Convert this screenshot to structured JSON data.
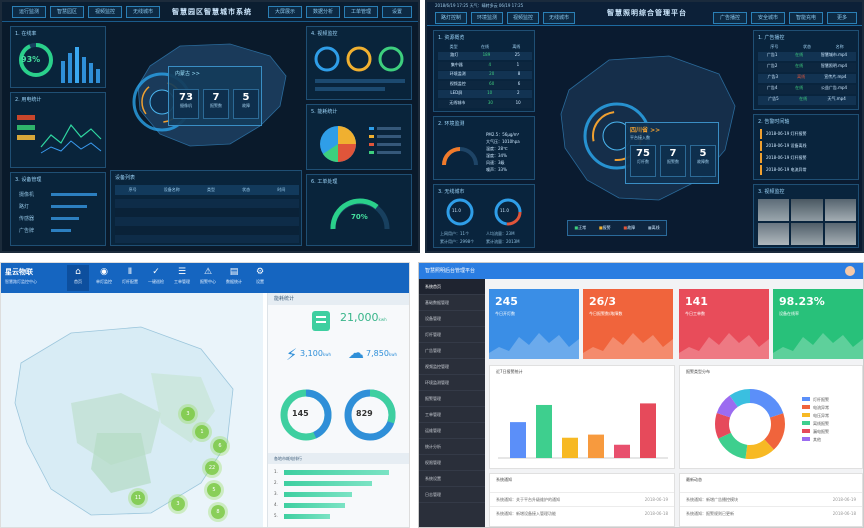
{
  "q1": {
    "title": "智慧园区智慧城市系统",
    "tabs": [
      "运行监测",
      "智慧园区",
      "视频监控",
      "无线城市",
      "大屏展示",
      "数据分析",
      "工单管理",
      "设置"
    ],
    "panel_a": {
      "title": "1. 在线率",
      "value": "93%"
    },
    "panel_b": {
      "title": "2. 用电统计"
    },
    "panel_c": {
      "title": "3. 设备管理",
      "rows": [
        "摄像机",
        "路灯",
        "传感器",
        "广告牌"
      ]
    },
    "map": {
      "region": "内蒙古 >>",
      "cards": [
        {
          "n": "73",
          "l": "摄像机"
        },
        {
          "n": "7",
          "l": "报警数"
        },
        {
          "n": "5",
          "l": "故障"
        }
      ]
    },
    "panel_d": {
      "title": "4. 视频监控"
    },
    "panel_e": {
      "title": "5. 能耗统计"
    },
    "panel_f": {
      "title": "6. 工单处理",
      "value": "70%"
    },
    "table": {
      "title": "设备列表",
      "header": [
        "序号",
        "设备名称",
        "类型",
        "状态",
        "时间"
      ]
    }
  },
  "q2": {
    "title": "智慧照明综合管理平台",
    "status": "2018/6/19  17:25   天气：晴转多云   06/19  17:25",
    "tabs": [
      "路灯控制",
      "环境监测",
      "视频监控",
      "无线城市",
      "广告播控",
      "安全城市",
      "智能充电",
      "更多"
    ],
    "resource": {
      "title": "1. 资源概览",
      "header": [
        "类型",
        "在线",
        "离线"
      ],
      "rows": [
        [
          "路灯",
          "189",
          "25"
        ],
        [
          "集中器",
          "4",
          "1"
        ],
        [
          "环境监测",
          "20",
          "8"
        ],
        [
          "视频监控",
          "60",
          "6"
        ],
        [
          "LED屏",
          "10",
          "2"
        ],
        [
          "无线城市",
          "30",
          "10"
        ]
      ]
    },
    "env": {
      "title": "2. 环境监测",
      "lines": [
        "PM2.5：56μg/m³",
        "大气压：1010hpa",
        "温度：28℃",
        "湿度：34%",
        "风速：3级",
        "噪声：33%"
      ]
    },
    "wifi": {
      "title": "3. 无线城市",
      "rings": [
        "11.0",
        "11.0"
      ],
      "lines": [
        "上网用户：11个",
        "累计用户：2998个",
        "人均流量：23M",
        "累计流量：2013M"
      ]
    },
    "map": {
      "province": "四川省 >>",
      "sub": "平台接入数",
      "cards": [
        {
          "n": "75",
          "l": "灯杆数"
        },
        {
          "n": "7",
          "l": "报警数"
        },
        {
          "n": "5",
          "l": "故障数"
        }
      ],
      "legend": [
        "正常",
        "报警",
        "故障",
        "离线"
      ]
    },
    "ad": {
      "title": "1. 广告播控",
      "header": [
        "序号",
        "状态",
        "名称"
      ],
      "rows": [
        [
          "广告1",
          "在线",
          "智慧城市.mp4"
        ],
        [
          "广告2",
          "在线",
          "智慧照明.mp4"
        ],
        [
          "广告3",
          "离线",
          "宣传片.mp4"
        ],
        [
          "广告4",
          "在线",
          "公益广告.mp4"
        ],
        [
          "广告5",
          "在线",
          "天气.mp4"
        ]
      ]
    },
    "alarm": {
      "title": "2. 告警时间轴",
      "rows": [
        "2018-06-19  灯杆报警",
        "2018-06-19  设备离线",
        "2018-06-19  灯杆报警",
        "2018-06-19  电流异常"
      ]
    },
    "video": {
      "title": "3. 视频监控"
    }
  },
  "q3": {
    "logo": "星云物联",
    "subtitle": "智慧路灯监控中心",
    "nav": [
      "首页",
      "单灯监控",
      "灯杆配置",
      "一键巡检",
      "工单管理",
      "报警中心",
      "数据统计",
      "设置"
    ],
    "panel_title": "能耗统计",
    "stats": [
      {
        "value": "21,000",
        "unit": "kwh"
      },
      {
        "value": "3,100",
        "unit": "kwh"
      },
      {
        "value": "7,850",
        "unit": "kwh"
      }
    ],
    "donuts": [
      "145",
      "829"
    ],
    "rank_title": "各地市耗电排行",
    "ranks": [
      {
        "l": "1.",
        "v": 0.95
      },
      {
        "l": "2.",
        "v": 0.8
      },
      {
        "l": "3.",
        "v": 0.62
      },
      {
        "l": "4.",
        "v": 0.55
      },
      {
        "l": "5.",
        "v": 0.42
      }
    ],
    "map_markers": [
      "3",
      "1",
      "22",
      "5",
      "8",
      "11",
      "3",
      "6"
    ]
  },
  "q4": {
    "title": "智慧照明后台管理平台",
    "sidebar": [
      "系统首页",
      "基础数据管理",
      "设备管理",
      "灯杆管理",
      "广告管理",
      "视频监控管理",
      "环境监测管理",
      "报警管理",
      "工单管理",
      "运维管理",
      "统计分析",
      "权限管理",
      "系统设置",
      "日志管理"
    ],
    "stats": [
      {
        "n": "245",
        "l": "今日开灯数",
        "c": "#3a8ee6"
      },
      {
        "n": "26/3",
        "l": "今日报警数/故障数",
        "c": "#f0643c"
      },
      {
        "n": "141",
        "l": "今日工单数",
        "c": "#e84c5a"
      },
      {
        "n": "98.23%",
        "l": "设备在线率",
        "c": "#28c17a"
      }
    ],
    "bar_title": "近7日报警统计",
    "donut_title": "报警类型分布",
    "bars": [
      {
        "v": 0.46,
        "c": "#5b8ff9"
      },
      {
        "v": 0.68,
        "c": "#3ecf8e"
      },
      {
        "v": 0.26,
        "c": "#f7b924"
      },
      {
        "v": 0.3,
        "c": "#f79a3e"
      },
      {
        "v": 0.17,
        "c": "#e8506e"
      },
      {
        "v": 0.7,
        "c": "#e64a5b"
      }
    ],
    "legend": [
      "灯杆报警",
      "电流异常",
      "电压异常",
      "离线报警",
      "漏电报警",
      "其他"
    ],
    "list_left_title": "系统通知",
    "list_right_title": "最新动态",
    "rows_left": [
      {
        "t": "系统通知：关于平台升级维护的通知",
        "d": "2018-06-19"
      },
      {
        "t": "系统通知：新增设备接入管理功能",
        "d": "2018-06-18"
      }
    ],
    "rows_right": [
      {
        "t": "系统通知：新增广告播控模块",
        "d": "2018-06-19"
      },
      {
        "t": "系统通知：报警规则已更新",
        "d": "2018-06-18"
      }
    ]
  }
}
